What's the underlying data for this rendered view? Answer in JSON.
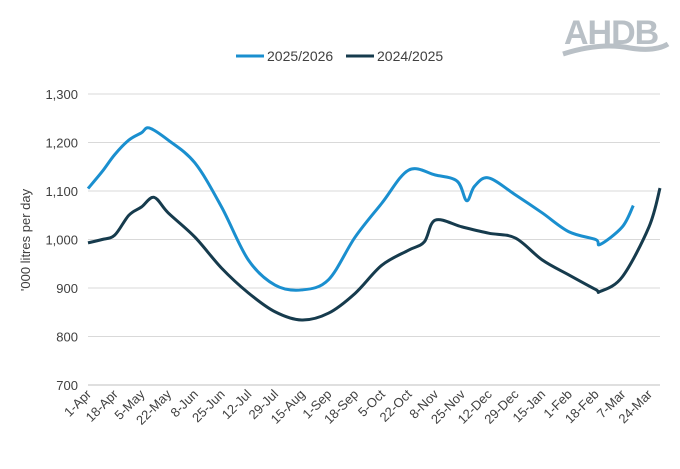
{
  "logo": {
    "text": "AHDB",
    "color": "#b9c0c6"
  },
  "chart_data": {
    "type": "line",
    "title": "",
    "xlabel": "",
    "ylabel": "'000 litres per day",
    "ylim": [
      700,
      1300
    ],
    "yticks": [
      "700",
      "800",
      "900",
      "1,000",
      "1,100",
      "1,200",
      "1,300"
    ],
    "ytick_values": [
      700,
      800,
      900,
      1000,
      1100,
      1200,
      1300
    ],
    "xticks": [
      "1-Apr",
      "18-Apr",
      "5-May",
      "22-May",
      "8-Jun",
      "25-Jun",
      "12-Jul",
      "29-Jul",
      "15-Aug",
      "1-Sep",
      "18-Sep",
      "5-Oct",
      "22-Oct",
      "8-Nov",
      "25-Nov",
      "12-Dec",
      "29-Dec",
      "15-Jan",
      "1-Feb",
      "18-Feb",
      "7-Mar",
      "24-Mar"
    ],
    "xlim": [
      "1-Apr",
      "31-Mar"
    ],
    "grid": "horizontal",
    "legend_position": "top",
    "series": [
      {
        "name": "2025/2026",
        "color": "#1a8fcf",
        "points": [
          [
            "1-Apr",
            1105
          ],
          [
            "10-Apr",
            1140
          ],
          [
            "18-Apr",
            1175
          ],
          [
            "27-Apr",
            1205
          ],
          [
            "5-May",
            1220
          ],
          [
            "10-May",
            1230
          ],
          [
            "22-May",
            1205
          ],
          [
            "8-Jun",
            1158
          ],
          [
            "25-Jun",
            1067
          ],
          [
            "12-Jul",
            958
          ],
          [
            "29-Jul",
            906
          ],
          [
            "15-Aug",
            896
          ],
          [
            "1-Sep",
            917
          ],
          [
            "18-Sep",
            1005
          ],
          [
            "5-Oct",
            1075
          ],
          [
            "22-Oct",
            1143
          ],
          [
            "8-Nov",
            1133
          ],
          [
            "22-Nov",
            1120
          ],
          [
            "28-Nov",
            1080
          ],
          [
            "3-Dec",
            1110
          ],
          [
            "12-Dec",
            1127
          ],
          [
            "29-Dec",
            1092
          ],
          [
            "15-Jan",
            1055
          ],
          [
            "1-Feb",
            1016
          ],
          [
            "18-Feb",
            1000
          ],
          [
            "21-Feb",
            990
          ],
          [
            "7-Mar",
            1026
          ],
          [
            "14-Mar",
            1070
          ]
        ]
      },
      {
        "name": "2024/2025",
        "color": "#163b4d",
        "points": [
          [
            "1-Apr",
            993
          ],
          [
            "10-Apr",
            1000
          ],
          [
            "18-Apr",
            1009
          ],
          [
            "27-Apr",
            1050
          ],
          [
            "5-May",
            1067
          ],
          [
            "13-May",
            1087
          ],
          [
            "22-May",
            1055
          ],
          [
            "8-Jun",
            1005
          ],
          [
            "25-Jun",
            941
          ],
          [
            "12-Jul",
            890
          ],
          [
            "29-Jul",
            851
          ],
          [
            "15-Aug",
            834
          ],
          [
            "1-Sep",
            848
          ],
          [
            "18-Sep",
            889
          ],
          [
            "5-Oct",
            947
          ],
          [
            "22-Oct",
            978
          ],
          [
            "1-Nov",
            995
          ],
          [
            "8-Nov",
            1040
          ],
          [
            "25-Nov",
            1026
          ],
          [
            "12-Dec",
            1013
          ],
          [
            "29-Dec",
            1003
          ],
          [
            "15-Jan",
            958
          ],
          [
            "1-Feb",
            927
          ],
          [
            "18-Feb",
            897
          ],
          [
            "21-Feb",
            893
          ],
          [
            "7-Mar",
            923
          ],
          [
            "24-Mar",
            1026
          ],
          [
            "31-Mar",
            1106
          ]
        ]
      }
    ]
  }
}
